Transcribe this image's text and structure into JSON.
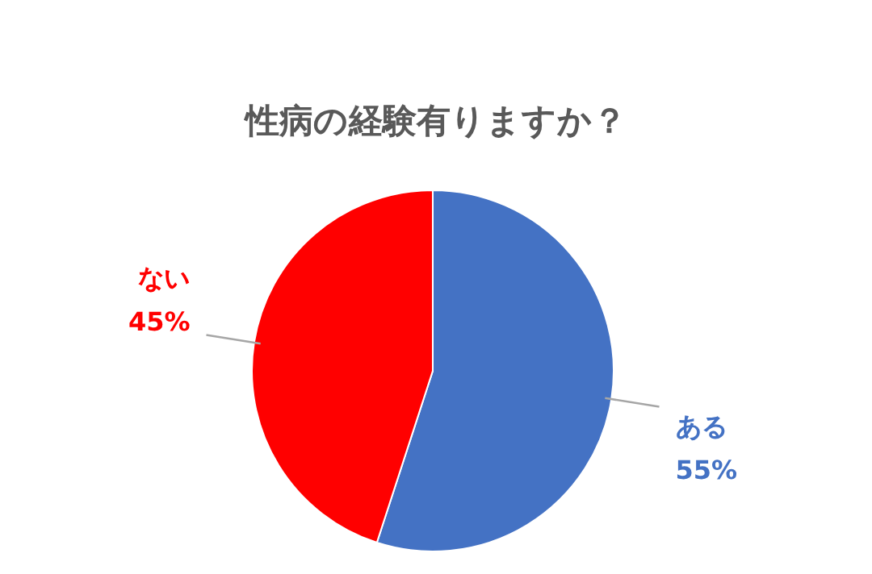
{
  "chart_data": {
    "type": "pie",
    "title": "性病の経験有りますか？",
    "categories": [
      "ある",
      "ない"
    ],
    "values": [
      55,
      45
    ],
    "colors": [
      "#4472c4",
      "#ff0000"
    ],
    "value_labels": [
      "55%",
      "45%"
    ]
  }
}
